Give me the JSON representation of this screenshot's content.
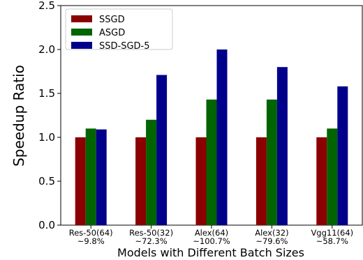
{
  "chart_data": {
    "type": "bar",
    "title": "",
    "xlabel": "Models with Different Batch Sizes",
    "ylabel": "Speedup Ratio",
    "ylim": [
      0,
      2.5
    ],
    "yticks": [
      "0.0",
      "0.5",
      "1.0",
      "1.5",
      "2.0",
      "2.5"
    ],
    "categories": [
      [
        "Res-50(64)",
        "~9.8%"
      ],
      [
        "Res-50(32)",
        "~72.3%"
      ],
      [
        "Alex(64)",
        "~100.7%"
      ],
      [
        "Alex(32)",
        "~79.6%"
      ],
      [
        "Vgg11(64)",
        "~58.7%"
      ]
    ],
    "series": [
      {
        "name": "SSGD",
        "color": "#8b0000",
        "values": [
          1.0,
          1.0,
          1.0,
          1.0,
          1.0
        ]
      },
      {
        "name": "ASGD",
        "color": "#006400",
        "values": [
          1.1,
          1.2,
          1.43,
          1.43,
          1.1
        ]
      },
      {
        "name": "SSD-SGD-5",
        "color": "#00008b",
        "values": [
          1.09,
          1.71,
          2.0,
          1.8,
          1.58
        ]
      }
    ],
    "legend_position": "top-left",
    "grid": false
  }
}
